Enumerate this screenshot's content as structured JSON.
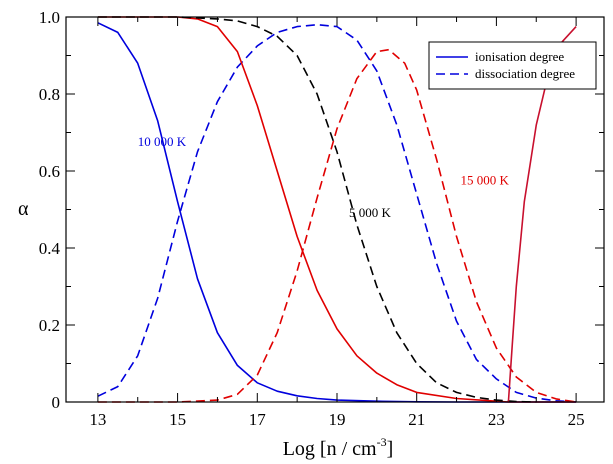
{
  "chart_data": {
    "type": "line",
    "xlabel": "Log [n / cm",
    "xlabel_sup": "-3",
    "xlabel_end": "]",
    "ylabel": "α",
    "xlim": [
      12.2,
      25.7
    ],
    "ylim": [
      0,
      1.0
    ],
    "x_ticks": [
      "13",
      "15",
      "17",
      "19",
      "21",
      "23",
      "25"
    ],
    "y_ticks": [
      "0",
      "0.2",
      "0.4",
      "0.6",
      "0.8",
      "1.0"
    ],
    "legend": {
      "placement": "top-right",
      "entries": [
        {
          "label": "ionisation degree",
          "style": "solid",
          "color": "#0000dd"
        },
        {
          "label": "dissociation degree",
          "style": "dashed",
          "color": "#0000dd"
        }
      ]
    },
    "annotations": [
      {
        "text": "10 000 K",
        "color": "#0000dd",
        "x": 14.0,
        "y": 0.665
      },
      {
        "text": "5 000 K",
        "color": "#000000",
        "x": 19.3,
        "y": 0.48
      },
      {
        "text": "15 000 K",
        "color": "#e00000",
        "x": 22.1,
        "y": 0.565
      }
    ],
    "series": [
      {
        "color": "#0000dd",
        "style": "solid",
        "points": [
          [
            13,
            0.985
          ],
          [
            13.5,
            0.96
          ],
          [
            14,
            0.88
          ],
          [
            14.5,
            0.73
          ],
          [
            15,
            0.52
          ],
          [
            15.5,
            0.32
          ],
          [
            16,
            0.18
          ],
          [
            16.5,
            0.095
          ],
          [
            17,
            0.05
          ],
          [
            17.5,
            0.028
          ],
          [
            18,
            0.016
          ],
          [
            18.5,
            0.009
          ],
          [
            19,
            0.005
          ],
          [
            20,
            0.002
          ],
          [
            21,
            0.0005
          ],
          [
            22,
            0.0001
          ],
          [
            23,
            0
          ],
          [
            25,
            0
          ]
        ]
      },
      {
        "color": "#0000dd",
        "style": "dashed",
        "points": [
          [
            13,
            0.015
          ],
          [
            13.5,
            0.04
          ],
          [
            14,
            0.12
          ],
          [
            14.5,
            0.27
          ],
          [
            15,
            0.47
          ],
          [
            15.5,
            0.65
          ],
          [
            16,
            0.78
          ],
          [
            16.5,
            0.87
          ],
          [
            17,
            0.925
          ],
          [
            17.5,
            0.96
          ],
          [
            18,
            0.975
          ],
          [
            18.5,
            0.98
          ],
          [
            19,
            0.975
          ],
          [
            19.5,
            0.94
          ],
          [
            20,
            0.86
          ],
          [
            20.5,
            0.72
          ],
          [
            21,
            0.54
          ],
          [
            21.5,
            0.36
          ],
          [
            22,
            0.21
          ],
          [
            22.5,
            0.11
          ],
          [
            23,
            0.06
          ],
          [
            23.5,
            0.025
          ],
          [
            24,
            0.01
          ],
          [
            24.5,
            0.003
          ],
          [
            25,
            0
          ]
        ]
      },
      {
        "color": "#e00000",
        "style": "solid",
        "points": [
          [
            13,
            1.0
          ],
          [
            14,
            1.0
          ],
          [
            15,
            1.0
          ],
          [
            15.5,
            0.995
          ],
          [
            16,
            0.975
          ],
          [
            16.5,
            0.91
          ],
          [
            17,
            0.77
          ],
          [
            17.5,
            0.6
          ],
          [
            18,
            0.43
          ],
          [
            18.5,
            0.29
          ],
          [
            19,
            0.19
          ],
          [
            19.5,
            0.12
          ],
          [
            20,
            0.075
          ],
          [
            20.5,
            0.045
          ],
          [
            21,
            0.025
          ],
          [
            22,
            0.009
          ],
          [
            23,
            0.002
          ],
          [
            23.3,
            0
          ],
          [
            25,
            0
          ]
        ]
      },
      {
        "color": "#e00000",
        "style": "dashed",
        "points": [
          [
            13,
            0
          ],
          [
            15,
            0
          ],
          [
            16,
            0.005
          ],
          [
            16.5,
            0.02
          ],
          [
            17,
            0.07
          ],
          [
            17.5,
            0.18
          ],
          [
            18,
            0.34
          ],
          [
            18.5,
            0.53
          ],
          [
            19,
            0.71
          ],
          [
            19.5,
            0.84
          ],
          [
            20,
            0.91
          ],
          [
            20.3,
            0.915
          ],
          [
            20.7,
            0.88
          ],
          [
            21,
            0.81
          ],
          [
            21.5,
            0.63
          ],
          [
            22,
            0.43
          ],
          [
            22.5,
            0.26
          ],
          [
            23,
            0.14
          ],
          [
            23.5,
            0.065
          ],
          [
            24,
            0.025
          ],
          [
            24.5,
            0.008
          ],
          [
            25,
            0
          ]
        ]
      },
      {
        "color": "#000000",
        "style": "dashed",
        "points": [
          [
            13,
            1.0
          ],
          [
            15,
            1.0
          ],
          [
            16,
            0.995
          ],
          [
            16.5,
            0.99
          ],
          [
            17,
            0.975
          ],
          [
            17.5,
            0.95
          ],
          [
            18,
            0.9
          ],
          [
            18.5,
            0.8
          ],
          [
            19,
            0.65
          ],
          [
            19.5,
            0.46
          ],
          [
            20,
            0.3
          ],
          [
            20.5,
            0.18
          ],
          [
            21,
            0.1
          ],
          [
            21.5,
            0.05
          ],
          [
            22,
            0.025
          ],
          [
            22.5,
            0.012
          ],
          [
            23,
            0.005
          ],
          [
            23.5,
            0.001
          ],
          [
            24,
            0
          ]
        ]
      },
      {
        "color": "#c8102e",
        "style": "solid",
        "points": [
          [
            23.3,
            0
          ],
          [
            23.4,
            0.15
          ],
          [
            23.5,
            0.3
          ],
          [
            23.7,
            0.52
          ],
          [
            24,
            0.72
          ],
          [
            24.3,
            0.85
          ],
          [
            24.6,
            0.93
          ],
          [
            25,
            0.975
          ]
        ]
      }
    ]
  }
}
